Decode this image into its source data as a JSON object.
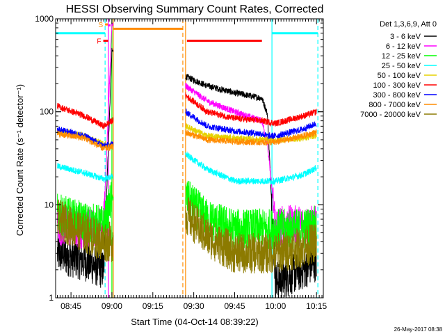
{
  "chart_data": {
    "type": "line",
    "title": "HESSI Observing Summary Count Rates, Corrected",
    "xlabel": "Start Time (04-Oct-14 08:39:22)",
    "ylabel": "Corrected Count Rate (s⁻¹ detector⁻¹)",
    "y_scale": "log",
    "ylim": [
      1,
      1000
    ],
    "xlim": [
      "08:39:22",
      "10:17:30"
    ],
    "x_ticks": [
      "08:45",
      "09:00",
      "09:15",
      "09:30",
      "09:45",
      "10:00",
      "10:15"
    ],
    "y_ticks": [
      "1",
      "10",
      "100",
      "1000"
    ],
    "legend_title": "Det 1,3,6,9, Att 0",
    "legend_position": "right",
    "timestamp": "26-May-2017 08:38",
    "series": [
      {
        "name": "3 - 6 keV",
        "color": "#000000",
        "x": [
          "08:40",
          "08:50",
          "08:57",
          "09:00",
          "09:27",
          "09:35",
          "09:45",
          "09:55",
          "09:57",
          "10:00",
          "10:10",
          "10:15"
        ],
        "y": [
          3,
          2.5,
          2,
          450,
          240,
          190,
          160,
          140,
          95,
          1.5,
          2,
          2.5
        ]
      },
      {
        "name": "6 - 12 keV",
        "color": "#ff00ff",
        "x": [
          "08:40",
          "08:50",
          "08:57",
          "09:00",
          "09:27",
          "09:35",
          "09:45",
          "09:55",
          "09:57",
          "10:00",
          "10:10",
          "10:15"
        ],
        "y": [
          6,
          5.5,
          6,
          900,
          190,
          130,
          100,
          80,
          45,
          6,
          6,
          6
        ]
      },
      {
        "name": "12 - 25 keV",
        "color": "#00ff00",
        "x": [
          "08:40",
          "08:50",
          "08:57",
          "09:00",
          "09:27",
          "09:35",
          "09:45",
          "09:55",
          "09:57",
          "10:00",
          "10:10",
          "10:15"
        ],
        "y": [
          8,
          6.5,
          6,
          12,
          12,
          7,
          5.5,
          5.5,
          5.5,
          5.5,
          5.5,
          6
        ]
      },
      {
        "name": "25 - 50 keV",
        "color": "#00ffff",
        "x": [
          "08:40",
          "08:50",
          "08:57",
          "09:00",
          "09:27",
          "09:35",
          "09:45",
          "09:55",
          "09:57",
          "10:00",
          "10:10",
          "10:15"
        ],
        "y": [
          26,
          22,
          19,
          20,
          35,
          24,
          18,
          18,
          18,
          18,
          21,
          25
        ]
      },
      {
        "name": "50 - 100 keV",
        "color": "#e6d200",
        "x": [
          "08:40",
          "08:50",
          "08:57",
          "09:00",
          "09:27",
          "09:35",
          "09:45",
          "09:55",
          "09:57",
          "10:00",
          "10:10",
          "10:15"
        ],
        "y": [
          62,
          55,
          45,
          44,
          70,
          55,
          52,
          50,
          50,
          50,
          52,
          56
        ]
      },
      {
        "name": "100 - 300 keV",
        "color": "#ff0000",
        "x": [
          "08:40",
          "08:50",
          "08:57",
          "09:00",
          "09:27",
          "09:35",
          "09:45",
          "09:55",
          "09:57",
          "10:00",
          "10:10",
          "10:15"
        ],
        "y": [
          115,
          90,
          70,
          80,
          150,
          100,
          85,
          80,
          78,
          75,
          90,
          100
        ]
      },
      {
        "name": "300 - 800 keV",
        "color": "#0000ff",
        "x": [
          "08:40",
          "08:50",
          "08:57",
          "09:00",
          "09:27",
          "09:35",
          "09:45",
          "09:55",
          "09:57",
          "10:00",
          "10:10",
          "10:15"
        ],
        "y": [
          65,
          55,
          43,
          45,
          100,
          70,
          62,
          58,
          55,
          55,
          65,
          75
        ]
      },
      {
        "name": "800 - 7000 keV",
        "color": "#ff8c00",
        "x": [
          "08:40",
          "08:50",
          "08:57",
          "09:00",
          "09:27",
          "09:35",
          "09:45",
          "09:55",
          "09:57",
          "10:00",
          "10:10",
          "10:15"
        ],
        "y": [
          58,
          52,
          40,
          42,
          60,
          50,
          48,
          47,
          47,
          47,
          55,
          60
        ]
      },
      {
        "name": "7000 - 20000 keV",
        "color": "#8c7a00",
        "x": [
          "08:40",
          "08:50",
          "08:57",
          "09:00",
          "09:27",
          "09:35",
          "09:45",
          "09:55",
          "09:57",
          "10:00",
          "10:10",
          "10:15"
        ],
        "y": [
          7,
          5,
          4,
          4,
          8,
          4.5,
          3,
          3,
          3,
          3,
          3.5,
          4
        ]
      }
    ],
    "flags": [
      {
        "label": "",
        "color": "#00ffff",
        "y": 700,
        "ranges": [
          [
            "08:39:22",
            "08:57:30"
          ],
          [
            "09:58:40",
            "10:15:30"
          ]
        ]
      },
      {
        "label": "",
        "color": "#ff8c00",
        "y": 780,
        "ranges": [
          [
            "09:00:30",
            "09:26:00"
          ]
        ]
      },
      {
        "label": "F",
        "color": "#ff0000",
        "y": 580,
        "ranges": [
          [
            "08:56:50",
            "08:58:40"
          ],
          [
            "09:27:30",
            "09:55:00"
          ]
        ]
      },
      {
        "label": "S",
        "color": "#ff8c00",
        "y": 870,
        "ranges": [
          [
            "08:57:30",
            "08:58:30"
          ]
        ]
      },
      {
        "label": "",
        "color": "#ff00ff",
        "y": 850,
        "ranges": [
          [
            "08:58:40",
            "08:59:30"
          ]
        ]
      }
    ],
    "vertical_markers": [
      {
        "time": "08:57:30",
        "color": "#00ffff",
        "style": "dashed"
      },
      {
        "time": "08:58:40",
        "color": "#ff00ff",
        "style": "solid"
      },
      {
        "time": "09:00:00",
        "color": "#00ff00",
        "style": "solid"
      },
      {
        "time": "09:00:30",
        "color": "#ff8c00",
        "style": "solid"
      },
      {
        "time": "09:26:00",
        "color": "#ff8c00",
        "style": "dashed"
      },
      {
        "time": "09:27:00",
        "color": "#ff8c00",
        "style": "solid"
      },
      {
        "time": "09:58:40",
        "color": "#00ffff",
        "style": "solid"
      },
      {
        "time": "10:15:30",
        "color": "#00ffff",
        "style": "dashed"
      }
    ]
  }
}
